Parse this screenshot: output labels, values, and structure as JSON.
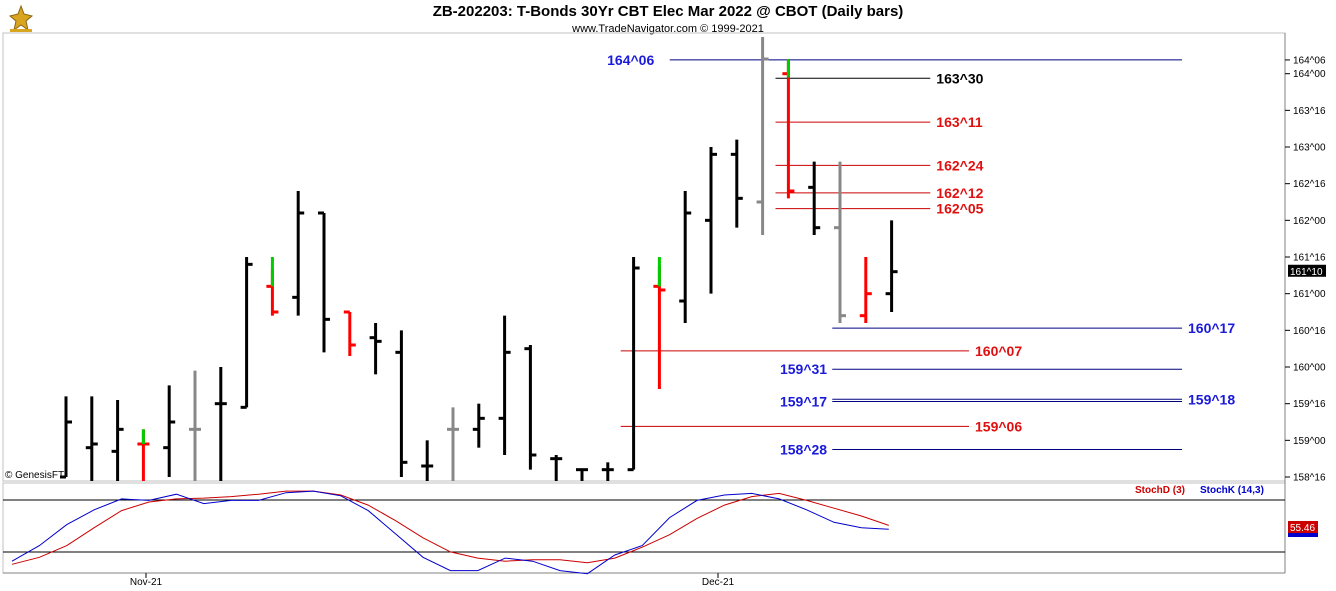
{
  "header": {
    "title": "ZB-202203:  T-Bonds 30Yr CBT Elec Mar 2022 @ CBOT  (Daily bars)",
    "subtitle": "www.TradeNavigator.com © 1999-2021",
    "watermark": "© GenesisFT"
  },
  "colors": {
    "up": "#000000",
    "down": "#ff0000",
    "green": "#00cc00",
    "gray": "#888888",
    "blue_line": "#000080",
    "red_line": "#cc0000",
    "blue_text": "#1a1adb",
    "red_text": "#e01010",
    "stoch_d": "#cc0000",
    "stoch_k": "#0000cc"
  },
  "chart_data": [
    {
      "type": "ohlc",
      "ylim_ticks": [
        158.5,
        164.5
      ],
      "y_tick_labels": [
        {
          "value": 164.1875,
          "label": "164^06"
        },
        {
          "value": 164.0,
          "label": "164^00"
        },
        {
          "value": 163.5,
          "label": "163^16"
        },
        {
          "value": 163.0,
          "label": "163^00"
        },
        {
          "value": 162.5,
          "label": "162^16"
        },
        {
          "value": 162.0,
          "label": "162^00"
        },
        {
          "value": 161.5,
          "label": "161^16"
        },
        {
          "value": 161.0,
          "label": "161^00"
        },
        {
          "value": 160.5,
          "label": "160^16"
        },
        {
          "value": 160.0,
          "label": "160^00"
        },
        {
          "value": 159.5,
          "label": "159^16"
        },
        {
          "value": 159.0,
          "label": "159^00"
        },
        {
          "value": 158.5,
          "label": "158^16"
        }
      ],
      "x_labels": [
        {
          "bar": 5,
          "label": "Nov-21"
        },
        {
          "bar": 28,
          "label": "Dec-21"
        }
      ],
      "last_price": {
        "value": 161.3125,
        "label": "161^10"
      },
      "bars": [
        {
          "i": 0,
          "o": 158.5,
          "h": 159.6,
          "l": 158.5,
          "c": 159.25,
          "col": "up"
        },
        {
          "i": 1,
          "o": 158.9,
          "h": 159.6,
          "l": 158.3,
          "c": 158.95,
          "col": "up"
        },
        {
          "i": 2,
          "o": 158.85,
          "h": 159.55,
          "l": 158.3,
          "c": 159.15,
          "col": "up"
        },
        {
          "i": 3,
          "o": 158.95,
          "h": 159.15,
          "l": 158.2,
          "c": 158.95,
          "col": "down"
        },
        {
          "i": 4,
          "o": 158.9,
          "h": 159.75,
          "l": 158.5,
          "c": 159.25,
          "col": "up"
        },
        {
          "i": 5,
          "o": 159.15,
          "h": 159.95,
          "l": 158.2,
          "c": 159.15,
          "col": "gray"
        },
        {
          "i": 6,
          "o": 159.5,
          "h": 160.0,
          "l": 158.2,
          "c": 159.5,
          "col": "up"
        },
        {
          "i": 7,
          "o": 159.45,
          "h": 161.5,
          "l": 159.45,
          "c": 161.4,
          "col": "up"
        },
        {
          "i": 8,
          "o": 161.1,
          "h": 161.33,
          "l": 160.7,
          "c": 160.75,
          "col": "down"
        },
        {
          "i": 9,
          "o": 160.95,
          "h": 162.4,
          "l": 160.7,
          "c": 162.1,
          "col": "up"
        },
        {
          "i": 10,
          "o": 162.1,
          "h": 162.1,
          "l": 160.2,
          "c": 160.65,
          "col": "up"
        },
        {
          "i": 11,
          "o": 160.75,
          "h": 160.75,
          "l": 160.15,
          "c": 160.3,
          "col": "down"
        },
        {
          "i": 12,
          "o": 160.4,
          "h": 160.6,
          "l": 159.9,
          "c": 160.35,
          "col": "up"
        },
        {
          "i": 13,
          "o": 160.2,
          "h": 160.5,
          "l": 158.5,
          "c": 158.7,
          "col": "up"
        },
        {
          "i": 14,
          "o": 158.65,
          "h": 159.0,
          "l": 158.2,
          "c": 158.65,
          "col": "up"
        },
        {
          "i": 15,
          "o": 159.15,
          "h": 159.45,
          "l": 158.2,
          "c": 159.15,
          "col": "gray"
        },
        {
          "i": 16,
          "o": 159.15,
          "h": 159.5,
          "l": 158.9,
          "c": 159.3,
          "col": "up"
        },
        {
          "i": 17,
          "o": 159.3,
          "h": 160.7,
          "l": 158.8,
          "c": 160.2,
          "col": "up"
        },
        {
          "i": 18,
          "o": 160.25,
          "h": 160.3,
          "l": 158.6,
          "c": 158.8,
          "col": "up"
        },
        {
          "i": 19,
          "o": 158.75,
          "h": 158.8,
          "l": 158.2,
          "c": 158.75,
          "col": "up"
        },
        {
          "i": 20,
          "o": 158.6,
          "h": 158.6,
          "l": 158.2,
          "c": 158.6,
          "col": "up"
        },
        {
          "i": 21,
          "o": 158.6,
          "h": 158.7,
          "l": 158.2,
          "c": 158.6,
          "col": "up"
        },
        {
          "i": 22,
          "o": 158.6,
          "h": 161.5,
          "l": 158.6,
          "c": 161.35,
          "col": "up"
        },
        {
          "i": 23,
          "o": 161.1,
          "h": 161.38,
          "l": 159.7,
          "c": 161.05,
          "col": "down"
        },
        {
          "i": 24,
          "o": 160.9,
          "h": 162.4,
          "l": 160.6,
          "c": 162.1,
          "col": "up"
        },
        {
          "i": 25,
          "o": 162.0,
          "h": 163.0,
          "l": 161.0,
          "c": 162.9,
          "col": "up"
        },
        {
          "i": 26,
          "o": 162.9,
          "h": 163.1,
          "l": 161.9,
          "c": 162.3,
          "col": "up"
        },
        {
          "i": 27,
          "o": 162.25,
          "h": 164.5,
          "l": 161.8,
          "c": 164.2,
          "col": "gray"
        },
        {
          "i": 28,
          "o": 164.0,
          "h": 164.2,
          "l": 162.3,
          "c": 162.4,
          "col": "down"
        },
        {
          "i": 29,
          "o": 162.45,
          "h": 162.8,
          "l": 161.8,
          "c": 161.9,
          "col": "up"
        },
        {
          "i": 30,
          "o": 161.9,
          "h": 162.8,
          "l": 160.6,
          "c": 160.7,
          "col": "gray"
        },
        {
          "i": 31,
          "o": 160.7,
          "h": 161.5,
          "l": 160.6,
          "c": 161.0,
          "col": "down"
        },
        {
          "i": 32,
          "o": 161.0,
          "h": 162.0,
          "l": 160.75,
          "c": 161.3,
          "col": "up"
        }
      ],
      "levels": [
        {
          "label": "164^06",
          "value": 164.1875,
          "color": "blue",
          "x1": 23.4,
          "x2": 44,
          "label_side": "left",
          "label_x": 22.8
        },
        {
          "label": "163^30",
          "value": 163.9375,
          "color": "black",
          "x1": 27.5,
          "x2": 33.5,
          "label_side": "right"
        },
        {
          "label": "163^11",
          "value": 163.34,
          "color": "red",
          "x1": 27.5,
          "x2": 33.5,
          "label_side": "right"
        },
        {
          "label": "162^24",
          "value": 162.75,
          "color": "red",
          "x1": 27.5,
          "x2": 33.5,
          "label_side": "right"
        },
        {
          "label": "162^12",
          "value": 162.375,
          "color": "red",
          "x1": 27.5,
          "x2": 33.5,
          "label_side": "right"
        },
        {
          "label": "162^05",
          "value": 162.16,
          "color": "red",
          "x1": 27.5,
          "x2": 33.5,
          "label_side": "right"
        },
        {
          "label": "160^17",
          "value": 160.53,
          "color": "blue",
          "x1": 29.7,
          "x2": 44,
          "label_side": "right_edge"
        },
        {
          "label": "160^07",
          "value": 160.22,
          "color": "red",
          "x1": 21.5,
          "x2": 35,
          "label_side": "right"
        },
        {
          "label": "159^31",
          "value": 159.97,
          "color": "blue",
          "x1": 29.7,
          "x2": 44,
          "label_side": "left",
          "label_x": 29.5
        },
        {
          "label": "159^18",
          "value": 159.56,
          "color": "blue",
          "x1": 29.7,
          "x2": 44,
          "label_side": "right_edge"
        },
        {
          "label": "159^17",
          "value": 159.53,
          "color": "blue",
          "x1": 29.7,
          "x2": 44,
          "label_side": "left",
          "label_x": 29.5
        },
        {
          "label": "159^06",
          "value": 159.19,
          "color": "red",
          "x1": 21.5,
          "x2": 35,
          "label_side": "right"
        },
        {
          "label": "158^28",
          "value": 158.875,
          "color": "blue",
          "x1": 29.7,
          "x2": 44,
          "label_side": "left",
          "label_x": 29.5
        }
      ]
    },
    {
      "type": "line",
      "panel": "stochastic",
      "legend": [
        {
          "name": "StochD (3)",
          "color": "red"
        },
        {
          "name": "StochK (14,3)",
          "color": "blue"
        }
      ],
      "last_value": "55.46",
      "ylim": [
        0,
        100
      ],
      "series": [
        {
          "name": "StochD (3)",
          "color": "red",
          "x": [
            0,
            1,
            2,
            3,
            4,
            5,
            6,
            7,
            8,
            9,
            10,
            11,
            12,
            13,
            14,
            15,
            16,
            17,
            18,
            19,
            20,
            21,
            22,
            23,
            24,
            25,
            26,
            27,
            28,
            29,
            30,
            31,
            32
          ],
          "values": [
            6,
            15,
            30,
            53,
            75,
            86,
            90,
            91,
            93,
            96,
            100,
            100,
            95,
            82,
            62,
            40,
            22,
            14,
            10,
            12,
            12,
            8,
            14,
            28,
            44,
            65,
            82,
            93,
            97,
            88,
            78,
            68,
            56
          ]
        },
        {
          "name": "StochK (14,3)",
          "color": "blue",
          "x": [
            0,
            1,
            2,
            3,
            4,
            5,
            6,
            7,
            8,
            9,
            10,
            11,
            12,
            13,
            14,
            15,
            16,
            17,
            18,
            19,
            20,
            21,
            22,
            23,
            24,
            25,
            26,
            27,
            28,
            29,
            30,
            31,
            32
          ],
          "values": [
            10,
            30,
            57,
            76,
            90,
            88,
            96,
            84,
            88,
            88,
            98,
            100,
            94,
            75,
            45,
            15,
            -2,
            -2,
            14,
            10,
            -2,
            -6,
            18,
            30,
            66,
            88,
            95,
            97,
            90,
            76,
            60,
            53,
            51
          ]
        }
      ]
    }
  ]
}
